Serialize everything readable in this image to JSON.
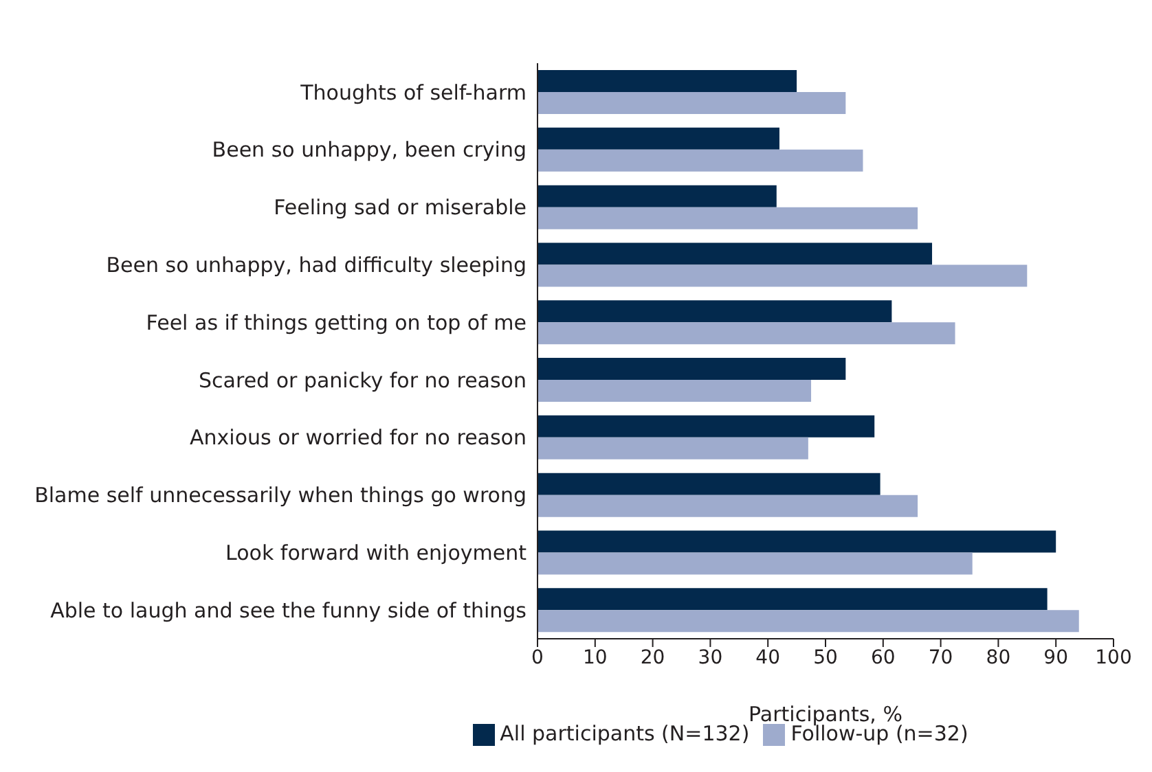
{
  "chart_data": {
    "type": "bar",
    "orientation": "horizontal",
    "xlabel": "Participants, %",
    "categories": [
      "Thoughts of self-harm",
      "Been so unhappy, been crying",
      "Feeling sad or miserable",
      "Been so unhappy, had difficulty sleeping",
      "Feel as if things getting on top of me",
      "Scared or panicky for no reason",
      "Anxious or worried for no reason",
      "Blame self unnecessarily when things go wrong",
      "Look forward with enjoyment",
      "Able to laugh and see the funny side of things"
    ],
    "series": [
      {
        "name": "All participants (N=132)",
        "color": "#03294d",
        "values": [
          45,
          42,
          41.5,
          68.5,
          61.5,
          53.5,
          58.5,
          59.5,
          90,
          88.5
        ]
      },
      {
        "name": "Follow-up (n=32)",
        "color": "#9eabcd",
        "values": [
          53.5,
          56.5,
          66,
          85,
          72.5,
          47.5,
          47,
          66,
          75.5,
          94
        ]
      }
    ],
    "xlim": [
      0,
      100
    ],
    "xticks": [
      0,
      10,
      20,
      30,
      40,
      50,
      60,
      70,
      80,
      90,
      100
    ],
    "grid": false,
    "legend": "bottom"
  }
}
